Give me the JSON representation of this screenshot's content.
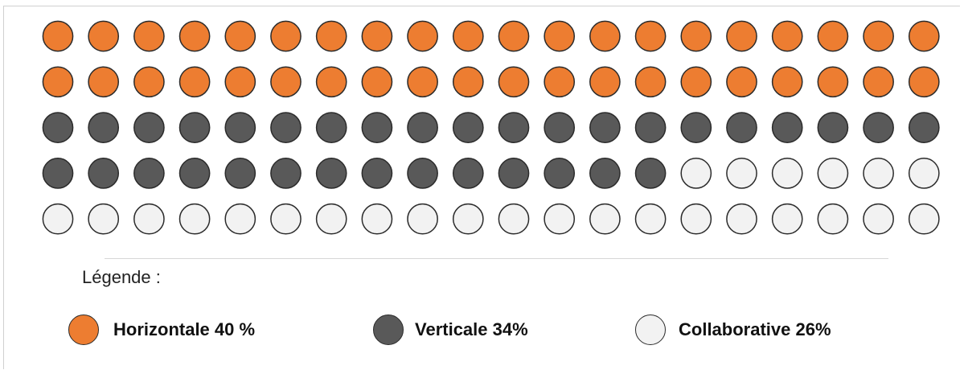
{
  "chart_data": {
    "type": "waffle",
    "rows": 5,
    "columns": 20,
    "total": 100,
    "legend_title": "Légende :",
    "series": [
      {
        "name": "Horizontale 40 %",
        "value": 40,
        "color": "#ED7D31"
      },
      {
        "name": "Verticale 34%",
        "value": 34,
        "color": "#595959"
      },
      {
        "name": "Collaborative 26%",
        "value": 26,
        "color": "#F2F2F2"
      }
    ],
    "legend_placement": "bottom"
  }
}
